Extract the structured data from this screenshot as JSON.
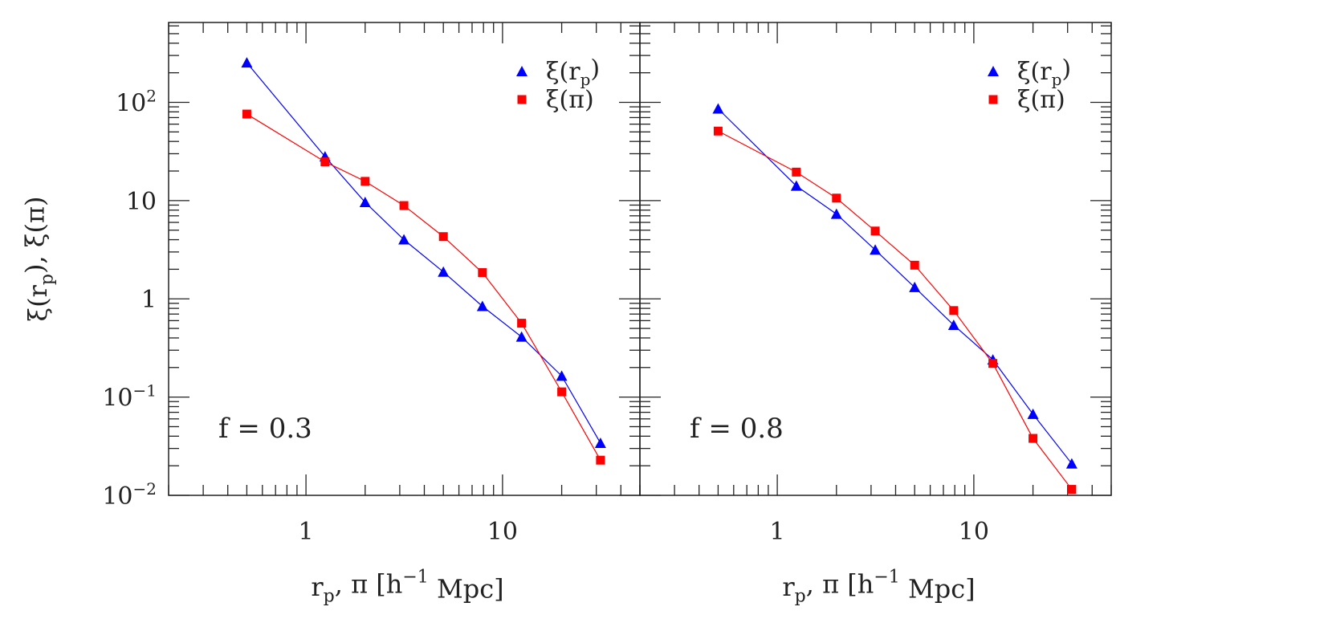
{
  "chart_data": [
    {
      "type": "line",
      "panel_label": "f  =  0.3",
      "xscale": "log",
      "yscale": "log",
      "xlim": [
        0.2,
        50
      ],
      "ylim": [
        0.01,
        650
      ],
      "xlabel": "r_p, π [h⁻¹ Mpc]",
      "ylabel": "ξ(r_p), ξ(π)",
      "x_tick_labels": [
        "1",
        "10"
      ],
      "y_tick_labels": [
        "10⁻²",
        "10⁻¹",
        "1",
        "10",
        "10²"
      ],
      "legend_position": "top-right",
      "x": [
        0.5,
        1.25,
        2,
        3.15,
        5,
        7.9,
        12.5,
        20,
        31.5
      ],
      "series": [
        {
          "name": "ξ(r_p)",
          "marker": "triangle",
          "color": "#0000ff",
          "values": [
            253,
            28,
            9.6,
            4.0,
            1.88,
            0.84,
            0.41,
            0.164,
            0.034
          ]
        },
        {
          "name": "ξ(π)",
          "marker": "square",
          "color": "#ff0000",
          "values": [
            76,
            24.8,
            15.7,
            8.9,
            4.3,
            1.85,
            0.565,
            0.113,
            0.0228
          ]
        }
      ]
    },
    {
      "type": "line",
      "panel_label": "f  =  0.8",
      "xscale": "log",
      "yscale": "log",
      "xlim": [
        0.2,
        50
      ],
      "ylim": [
        0.01,
        650
      ],
      "xlabel": "r_p, π [h⁻¹ Mpc]",
      "x_tick_labels": [
        "1",
        "10"
      ],
      "legend_position": "top-right",
      "x": [
        0.5,
        1.25,
        2,
        3.15,
        5,
        7.9,
        12.5,
        20,
        31.5
      ],
      "series": [
        {
          "name": "ξ(r_p)",
          "marker": "triangle",
          "color": "#0000ff",
          "values": [
            86,
            14.1,
            7.3,
            3.15,
            1.31,
            0.54,
            0.24,
            0.067,
            0.021
          ]
        },
        {
          "name": "ξ(π)",
          "marker": "square",
          "color": "#ff0000",
          "values": [
            51,
            19.5,
            10.6,
            4.9,
            2.2,
            0.76,
            0.22,
            0.038,
            0.0115
          ]
        }
      ]
    }
  ]
}
